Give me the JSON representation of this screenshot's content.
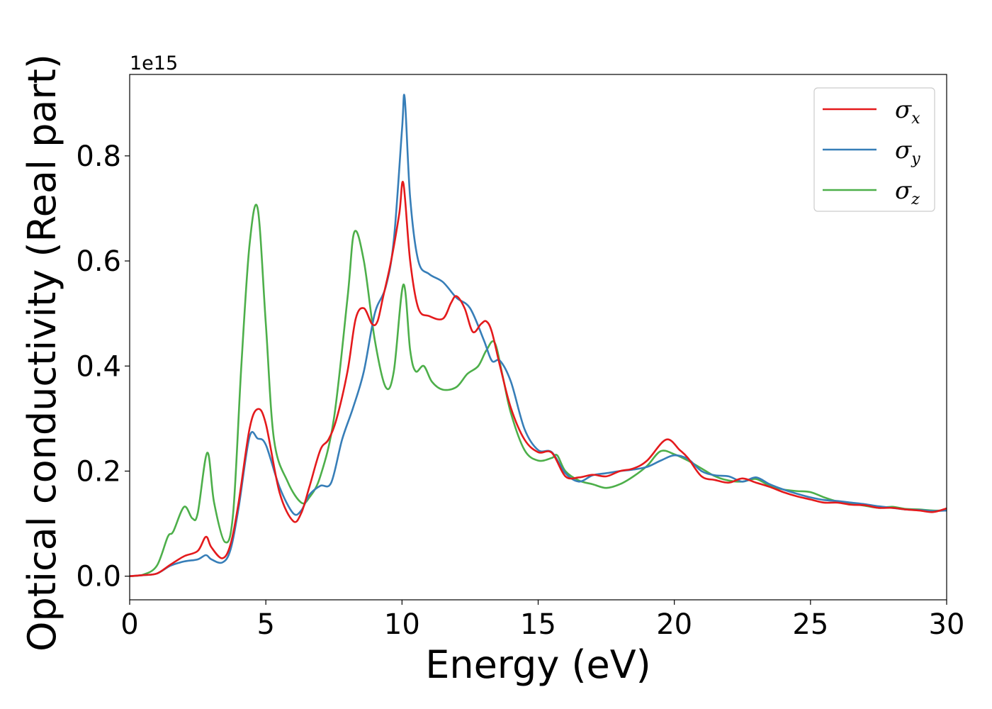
{
  "chart_data": {
    "type": "line",
    "title": "",
    "xlabel": "Energy (eV)",
    "ylabel": "Optical conductivity (Real part)",
    "y_offset_label": "1e15",
    "xlim": [
      0,
      30
    ],
    "ylim": [
      -0.045,
      0.955
    ],
    "x_ticks": [
      0,
      5,
      10,
      15,
      20,
      25,
      30
    ],
    "x_tick_labels": [
      "0",
      "5",
      "10",
      "15",
      "20",
      "25",
      "30"
    ],
    "y_ticks": [
      0.0,
      0.2,
      0.4,
      0.6,
      0.8
    ],
    "y_tick_labels": [
      "0.0",
      "0.2",
      "0.4",
      "0.6",
      "0.8"
    ],
    "grid": false,
    "legend_position": "top-right",
    "series": [
      {
        "name": "σx",
        "symbol": "σ",
        "subscript": "x",
        "color": "#e41a1c",
        "x": [
          0,
          0.5,
          1.0,
          1.5,
          2.0,
          2.5,
          2.8,
          3.0,
          3.4,
          3.7,
          4.0,
          4.4,
          4.7,
          5.0,
          5.5,
          6.0,
          6.3,
          6.6,
          7.0,
          7.3,
          7.6,
          8.0,
          8.3,
          8.6,
          8.9,
          9.1,
          9.3,
          9.6,
          9.9,
          10.05,
          10.3,
          10.6,
          11.0,
          11.5,
          11.8,
          12.0,
          12.3,
          12.6,
          12.9,
          13.1,
          13.3,
          13.6,
          14.0,
          14.5,
          15.0,
          15.5,
          16.0,
          16.5,
          17.0,
          17.5,
          18.0,
          18.5,
          19.0,
          19.7,
          20.2,
          20.5,
          21.0,
          21.5,
          22.0,
          22.5,
          23.0,
          23.5,
          24.0,
          24.5,
          25.0,
          25.5,
          26.0,
          26.5,
          27.0,
          27.5,
          28.0,
          28.5,
          29.0,
          29.5,
          30.0
        ],
        "values": [
          0.0,
          0.002,
          0.005,
          0.022,
          0.038,
          0.048,
          0.075,
          0.055,
          0.034,
          0.06,
          0.14,
          0.28,
          0.318,
          0.29,
          0.16,
          0.105,
          0.12,
          0.17,
          0.24,
          0.26,
          0.3,
          0.39,
          0.49,
          0.51,
          0.48,
          0.485,
          0.53,
          0.6,
          0.69,
          0.748,
          0.6,
          0.51,
          0.495,
          0.49,
          0.52,
          0.533,
          0.51,
          0.465,
          0.48,
          0.485,
          0.465,
          0.4,
          0.32,
          0.26,
          0.236,
          0.235,
          0.19,
          0.188,
          0.193,
          0.19,
          0.2,
          0.205,
          0.22,
          0.26,
          0.24,
          0.225,
          0.19,
          0.183,
          0.178,
          0.186,
          0.178,
          0.17,
          0.16,
          0.152,
          0.146,
          0.14,
          0.14,
          0.136,
          0.135,
          0.13,
          0.13,
          0.127,
          0.125,
          0.122,
          0.129
        ]
      },
      {
        "name": "σy",
        "symbol": "σ",
        "subscript": "y",
        "color": "#377eb8",
        "x": [
          0,
          0.5,
          1.0,
          1.5,
          2.0,
          2.5,
          2.8,
          3.0,
          3.4,
          3.7,
          4.0,
          4.4,
          4.7,
          5.0,
          5.5,
          6.0,
          6.3,
          6.6,
          7.0,
          7.4,
          7.8,
          8.2,
          8.6,
          9.0,
          9.4,
          9.7,
          10.0,
          10.1,
          10.3,
          10.6,
          11.0,
          11.5,
          12.0,
          12.5,
          13.0,
          13.3,
          13.6,
          14.0,
          14.5,
          15.0,
          15.5,
          16.0,
          16.5,
          17.0,
          17.5,
          18.0,
          18.5,
          19.0,
          19.5,
          20.0,
          20.5,
          21.0,
          21.5,
          22.0,
          22.5,
          23.0,
          23.5,
          24.0,
          24.5,
          25.0,
          25.5,
          26.0,
          26.5,
          27.0,
          27.5,
          28.0,
          28.5,
          29.0,
          29.5,
          30.0
        ],
        "values": [
          0.0,
          0.002,
          0.005,
          0.02,
          0.028,
          0.032,
          0.04,
          0.032,
          0.026,
          0.05,
          0.13,
          0.265,
          0.262,
          0.25,
          0.17,
          0.12,
          0.125,
          0.155,
          0.172,
          0.178,
          0.26,
          0.32,
          0.39,
          0.5,
          0.55,
          0.64,
          0.85,
          0.91,
          0.72,
          0.6,
          0.575,
          0.56,
          0.53,
          0.51,
          0.45,
          0.41,
          0.41,
          0.37,
          0.28,
          0.24,
          0.236,
          0.196,
          0.18,
          0.192,
          0.196,
          0.2,
          0.203,
          0.208,
          0.22,
          0.23,
          0.223,
          0.2,
          0.192,
          0.19,
          0.18,
          0.188,
          0.175,
          0.165,
          0.157,
          0.15,
          0.145,
          0.143,
          0.14,
          0.137,
          0.133,
          0.13,
          0.127,
          0.126,
          0.124,
          0.125
        ]
      },
      {
        "name": "σz",
        "symbol": "σ",
        "subscript": "z",
        "color": "#4daf4a",
        "x": [
          0,
          0.5,
          1.0,
          1.4,
          1.6,
          2.0,
          2.3,
          2.5,
          2.85,
          3.1,
          3.5,
          3.8,
          4.1,
          4.4,
          4.7,
          5.0,
          5.3,
          5.8,
          6.3,
          6.6,
          7.0,
          7.5,
          8.0,
          8.25,
          8.6,
          9.0,
          9.4,
          9.7,
          10.05,
          10.3,
          10.5,
          10.8,
          11.1,
          11.5,
          12.0,
          12.4,
          12.8,
          13.1,
          13.4,
          13.7,
          14.0,
          14.5,
          15.0,
          15.5,
          15.7,
          16.0,
          16.5,
          17.0,
          17.5,
          18.0,
          18.5,
          19.0,
          19.5,
          20.0,
          20.5,
          21.0,
          21.5,
          22.0,
          22.5,
          23.0,
          23.5,
          24.0,
          24.5,
          25.0,
          25.5,
          26.0,
          26.5,
          27.0,
          27.5,
          28.0,
          28.5,
          29.0,
          29.5,
          30.0
        ],
        "values": [
          0.0,
          0.003,
          0.02,
          0.075,
          0.085,
          0.132,
          0.11,
          0.12,
          0.235,
          0.14,
          0.065,
          0.12,
          0.4,
          0.63,
          0.7,
          0.48,
          0.26,
          0.18,
          0.14,
          0.15,
          0.19,
          0.3,
          0.53,
          0.655,
          0.6,
          0.45,
          0.36,
          0.39,
          0.555,
          0.43,
          0.39,
          0.4,
          0.37,
          0.355,
          0.36,
          0.385,
          0.4,
          0.43,
          0.445,
          0.38,
          0.31,
          0.24,
          0.22,
          0.225,
          0.23,
          0.2,
          0.182,
          0.175,
          0.168,
          0.175,
          0.19,
          0.21,
          0.238,
          0.232,
          0.22,
          0.205,
          0.19,
          0.182,
          0.18,
          0.185,
          0.172,
          0.165,
          0.162,
          0.16,
          0.15,
          0.142,
          0.138,
          0.134,
          0.13,
          0.132,
          0.128,
          0.127,
          0.125,
          0.125
        ]
      }
    ]
  }
}
